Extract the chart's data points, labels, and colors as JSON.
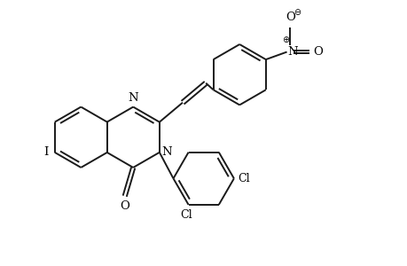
{
  "bg_color": "#ffffff",
  "bond_color": "#1a1a1a",
  "bond_lw": 1.4,
  "font_size": 9.5,
  "figsize": [
    4.6,
    3.0
  ],
  "dpi": 100,
  "xlim": [
    -2.2,
    6.8
  ],
  "ylim": [
    -3.0,
    3.2
  ]
}
